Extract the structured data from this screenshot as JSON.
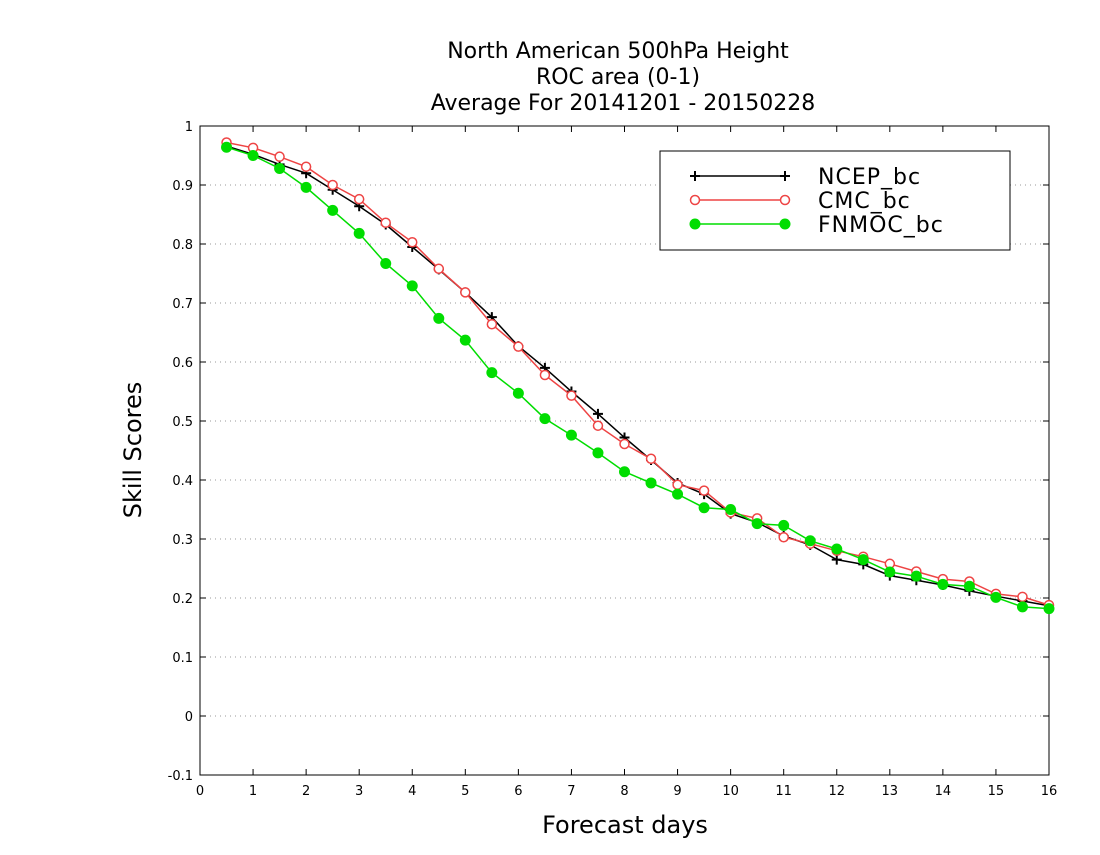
{
  "chart_data": {
    "type": "line",
    "title": [
      "North American 500hPa Height",
      "ROC area (0-1)",
      "Average For 20141201 - 20150228"
    ],
    "xlabel": "Forecast days",
    "ylabel": "Skill Scores",
    "xlim": [
      0,
      16
    ],
    "ylim": [
      -0.1,
      1
    ],
    "xticks": [
      "0",
      "1",
      "2",
      "3",
      "4",
      "5",
      "6",
      "7",
      "8",
      "9",
      "10",
      "11",
      "12",
      "13",
      "14",
      "15",
      "16"
    ],
    "yticks": [
      "-0.1",
      "0",
      "0.1",
      "0.2",
      "0.3",
      "0.4",
      "0.5",
      "0.6",
      "0.7",
      "0.8",
      "0.9",
      "1"
    ],
    "grid": "horizontal dotted",
    "legend_position": "top-right",
    "x": [
      0.5,
      1,
      1.5,
      2,
      2.5,
      3,
      3.5,
      4,
      4.5,
      5,
      5.5,
      6,
      6.5,
      7,
      7.5,
      8,
      8.5,
      9,
      9.5,
      10,
      10.5,
      11,
      11.5,
      12,
      12.5,
      13,
      13.5,
      14,
      14.5,
      15,
      15.5,
      16
    ],
    "series": [
      {
        "name": "NCEP_bc",
        "color": "#000000",
        "marker": "plus",
        "values": [
          0.966,
          0.952,
          0.935,
          0.92,
          0.892,
          0.864,
          0.833,
          0.795,
          0.757,
          0.718,
          0.676,
          0.627,
          0.59,
          0.55,
          0.512,
          0.472,
          0.434,
          0.395,
          0.376,
          0.343,
          0.328,
          0.305,
          0.29,
          0.265,
          0.257,
          0.238,
          0.23,
          0.222,
          0.212,
          0.203,
          0.195,
          0.187
        ]
      },
      {
        "name": "CMC_bc",
        "color": "#ee4444",
        "marker": "open-circle",
        "values": [
          0.972,
          0.963,
          0.948,
          0.931,
          0.9,
          0.876,
          0.836,
          0.803,
          0.758,
          0.718,
          0.664,
          0.626,
          0.578,
          0.543,
          0.492,
          0.461,
          0.436,
          0.392,
          0.382,
          0.345,
          0.335,
          0.303,
          0.292,
          0.28,
          0.27,
          0.258,
          0.245,
          0.232,
          0.228,
          0.207,
          0.202,
          0.188
        ]
      },
      {
        "name": "FNMOC_bc",
        "color": "#00dd00",
        "marker": "filled-circle",
        "values": [
          0.964,
          0.95,
          0.928,
          0.896,
          0.857,
          0.818,
          0.767,
          0.729,
          0.674,
          0.637,
          0.582,
          0.547,
          0.504,
          0.476,
          0.446,
          0.414,
          0.395,
          0.376,
          0.353,
          0.35,
          0.326,
          0.323,
          0.297,
          0.283,
          0.265,
          0.244,
          0.237,
          0.223,
          0.22,
          0.201,
          0.185,
          0.182
        ]
      }
    ]
  }
}
